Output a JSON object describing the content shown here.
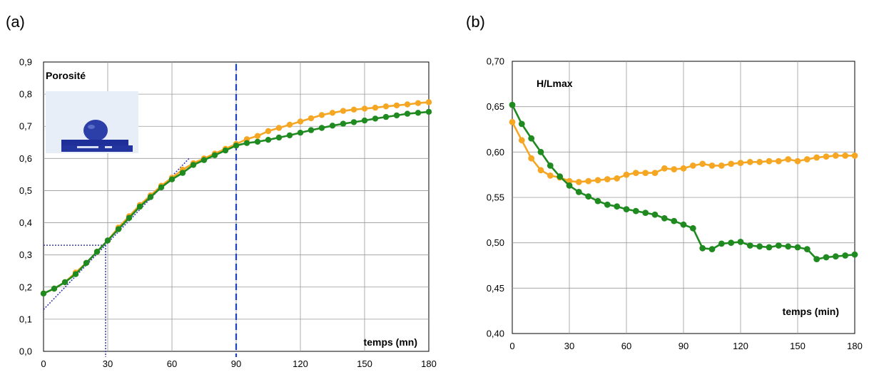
{
  "colors": {
    "orange": "#f5a623",
    "green": "#1f8a1f",
    "guide_blue": "#1f3fbf",
    "guide_dotted": "#3a3ab0",
    "grid": "#9a9a9a"
  },
  "chart_data": [
    {
      "type": "line",
      "panel_label": "(a)",
      "annotation_title": "Porosité",
      "xlabel": "temps (mn)",
      "ylabel": "",
      "xlim": [
        0,
        180
      ],
      "ylim": [
        0,
        0.9
      ],
      "x_ticks": [
        0,
        30,
        60,
        90,
        120,
        150,
        180
      ],
      "x_tick_labels": [
        "0",
        "30",
        "60",
        "90",
        "120",
        "150",
        "180"
      ],
      "y_ticks": [
        0,
        0.1,
        0.2,
        0.3,
        0.4,
        0.5,
        0.6,
        0.7,
        0.8,
        0.9
      ],
      "y_tick_labels": [
        "0,0",
        "0,1",
        "0,2",
        "0,3",
        "0,4",
        "0,5",
        "0,6",
        "0,7",
        "0,8",
        "0,9"
      ],
      "grid": true,
      "inset_image": "droplet-on-substrate photo",
      "guides": {
        "tangent_line": [
          [
            0,
            0.13
          ],
          [
            68,
            0.6
          ]
        ],
        "dotted_h_y": 0.33,
        "dotted_v_x": 29,
        "dashed_v_x": 90
      },
      "series": [
        {
          "color": "#f5a623",
          "x": [
            0,
            5,
            10,
            15,
            20,
            25,
            30,
            35,
            40,
            45,
            50,
            55,
            60,
            65,
            70,
            75,
            80,
            85,
            90,
            95,
            100,
            105,
            110,
            115,
            120,
            125,
            130,
            135,
            140,
            145,
            150,
            155,
            160,
            165,
            170,
            175,
            180
          ],
          "y": [
            0.18,
            0.195,
            0.215,
            0.245,
            0.275,
            0.31,
            0.345,
            0.385,
            0.42,
            0.455,
            0.485,
            0.515,
            0.54,
            0.565,
            0.585,
            0.6,
            0.615,
            0.63,
            0.645,
            0.66,
            0.67,
            0.685,
            0.695,
            0.705,
            0.715,
            0.725,
            0.735,
            0.742,
            0.748,
            0.752,
            0.755,
            0.758,
            0.762,
            0.765,
            0.768,
            0.772,
            0.775
          ]
        },
        {
          "color": "#1f8a1f",
          "x": [
            0,
            5,
            10,
            15,
            20,
            25,
            30,
            35,
            40,
            45,
            50,
            55,
            60,
            65,
            70,
            75,
            80,
            85,
            90,
            95,
            100,
            105,
            110,
            115,
            120,
            125,
            130,
            135,
            140,
            145,
            150,
            155,
            160,
            165,
            170,
            175,
            180
          ],
          "y": [
            0.18,
            0.195,
            0.215,
            0.24,
            0.275,
            0.31,
            0.345,
            0.38,
            0.415,
            0.45,
            0.48,
            0.51,
            0.535,
            0.555,
            0.58,
            0.595,
            0.61,
            0.625,
            0.64,
            0.648,
            0.652,
            0.658,
            0.665,
            0.672,
            0.68,
            0.688,
            0.695,
            0.702,
            0.708,
            0.713,
            0.718,
            0.724,
            0.729,
            0.734,
            0.739,
            0.742,
            0.745
          ]
        }
      ]
    },
    {
      "type": "line",
      "panel_label": "(b)",
      "annotation_title": "H/Lmax",
      "xlabel": "temps (min)",
      "ylabel": "",
      "xlim": [
        0,
        180
      ],
      "ylim": [
        0.4,
        0.7
      ],
      "x_ticks": [
        0,
        30,
        60,
        90,
        120,
        150,
        180
      ],
      "x_tick_labels": [
        "0",
        "30",
        "60",
        "90",
        "120",
        "150",
        "180"
      ],
      "y_ticks": [
        0.4,
        0.45,
        0.5,
        0.55,
        0.6,
        0.65,
        0.7
      ],
      "y_tick_labels": [
        "0,40",
        "0,45",
        "0,50",
        "0,55",
        "0,60",
        "0,65",
        "0,70"
      ],
      "grid": true,
      "series": [
        {
          "color": "#f5a623",
          "x": [
            0,
            5,
            10,
            15,
            20,
            25,
            30,
            35,
            40,
            45,
            50,
            55,
            60,
            65,
            70,
            75,
            80,
            85,
            90,
            95,
            100,
            105,
            110,
            115,
            120,
            125,
            130,
            135,
            140,
            145,
            150,
            155,
            160,
            165,
            170,
            175,
            180
          ],
          "y": [
            0.633,
            0.613,
            0.593,
            0.58,
            0.574,
            0.572,
            0.568,
            0.567,
            0.568,
            0.569,
            0.57,
            0.571,
            0.575,
            0.577,
            0.577,
            0.577,
            0.582,
            0.581,
            0.582,
            0.585,
            0.587,
            0.585,
            0.585,
            0.587,
            0.588,
            0.589,
            0.589,
            0.59,
            0.59,
            0.592,
            0.59,
            0.592,
            0.594,
            0.595,
            0.596,
            0.596,
            0.596
          ]
        },
        {
          "color": "#1f8a1f",
          "x": [
            0,
            5,
            10,
            15,
            20,
            25,
            30,
            35,
            40,
            45,
            50,
            55,
            60,
            65,
            70,
            75,
            80,
            85,
            90,
            95,
            100,
            105,
            110,
            115,
            120,
            125,
            130,
            135,
            140,
            145,
            150,
            155,
            160,
            165,
            170,
            175,
            180
          ],
          "y": [
            0.652,
            0.631,
            0.615,
            0.6,
            0.585,
            0.573,
            0.563,
            0.556,
            0.551,
            0.546,
            0.542,
            0.54,
            0.537,
            0.535,
            0.533,
            0.531,
            0.527,
            0.524,
            0.52,
            0.516,
            0.494,
            0.493,
            0.499,
            0.5,
            0.501,
            0.497,
            0.496,
            0.495,
            0.497,
            0.496,
            0.495,
            0.493,
            0.482,
            0.484,
            0.485,
            0.486,
            0.487
          ]
        }
      ]
    }
  ]
}
